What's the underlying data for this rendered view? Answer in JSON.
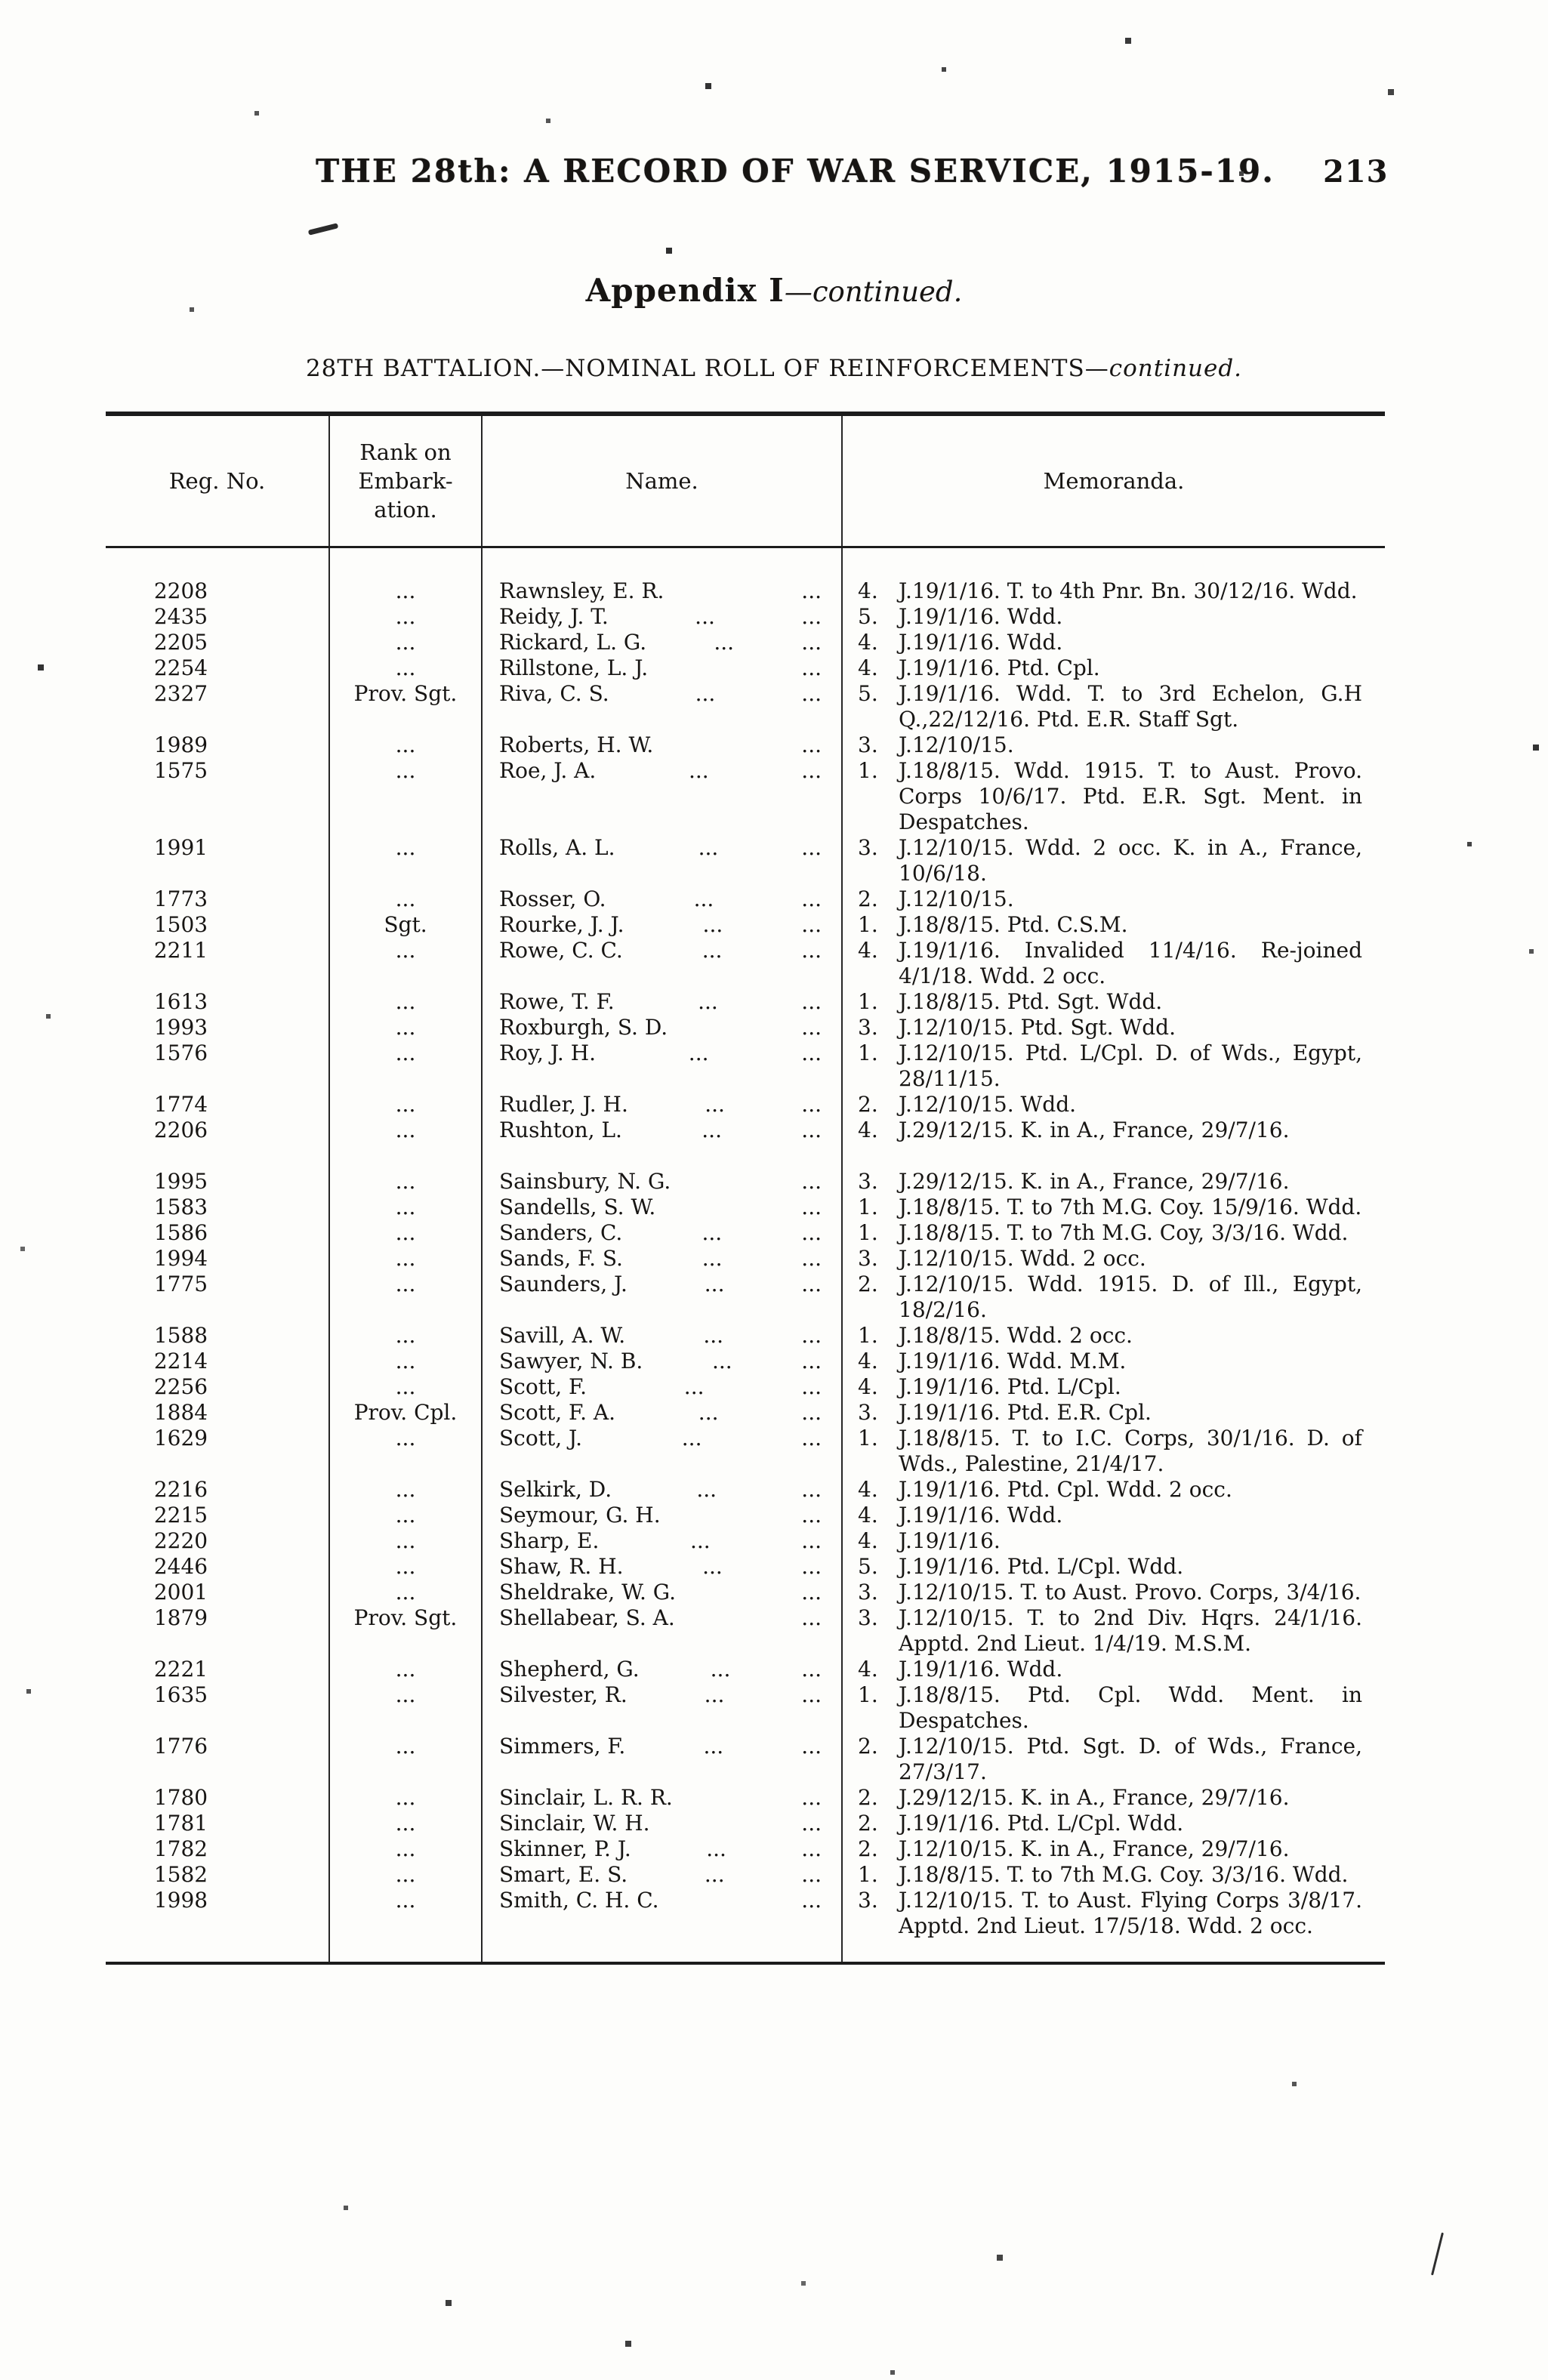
{
  "page": {
    "title": "THE 28th: A RECORD OF WAR SERVICE, 1915-19.",
    "page_number": "213",
    "appendix_heading": "Appendix I",
    "appendix_continued": "—continued.",
    "battalion_heading": "28TH BATTALION.—NOMINAL ROLL OF REINFORCEMENTS—",
    "battalion_continued": "continued."
  },
  "table": {
    "headers": {
      "reg_no": "Reg. No.",
      "rank_line1": "Rank on",
      "rank_line2": "Embark-",
      "rank_line3": "ation.",
      "name": "Name.",
      "memoranda": "Memoranda."
    },
    "rows": [
      {
        "reg": "2208",
        "rank": "...",
        "name": "Rawnsley, E. R.",
        "mid": "",
        "end": "...",
        "num": "4.",
        "memo": "J.19/1/16.  T. to 4th Pnr. Bn. 30/12/16.  Wdd."
      },
      {
        "reg": "2435",
        "rank": "...",
        "name": "Reidy, J. T.",
        "mid": "...",
        "end": "...",
        "num": "5.",
        "memo": "J.19/1/16.  Wdd."
      },
      {
        "reg": "2205",
        "rank": "...",
        "name": "Rickard, L. G.",
        "mid": "...",
        "end": "...",
        "num": "4.",
        "memo": "J.19/1/16.  Wdd."
      },
      {
        "reg": "2254",
        "rank": "...",
        "name": "Rillstone, L. J.",
        "mid": "",
        "end": "...",
        "num": "4.",
        "memo": "J.19/1/16.  Ptd. Cpl."
      },
      {
        "reg": "2327",
        "rank": "Prov. Sgt.",
        "name": "Riva, C. S.",
        "mid": "...",
        "end": "...",
        "num": "5.",
        "memo": "J.19/1/16.  Wdd. T. to 3rd Echelon, G.H Q.,22/12/16.  Ptd. E.R. Staff Sgt."
      },
      {
        "reg": "1989",
        "rank": "...",
        "name": "Roberts, H. W.",
        "mid": "",
        "end": "...",
        "num": "3.",
        "memo": "J.12/10/15."
      },
      {
        "reg": "1575",
        "rank": "...",
        "name": "Roe, J. A.",
        "mid": "...",
        "end": "...",
        "num": "1.",
        "memo": "J.18/8/15.  Wdd. 1915.  T. to Aust. Provo. Corps 10/6/17.  Ptd. E.R. Sgt. Ment. in Despatches."
      },
      {
        "reg": "1991",
        "rank": "...",
        "name": "Rolls, A. L.",
        "mid": "...",
        "end": "...",
        "num": "3.",
        "memo": "J.12/10/15.  Wdd. 2 occ.  K. in A., France, 10/6/18."
      },
      {
        "reg": "1773",
        "rank": "...",
        "name": "Rosser, O.",
        "mid": "...",
        "end": "...",
        "num": "2.",
        "memo": "J.12/10/15."
      },
      {
        "reg": "1503",
        "rank": "Sgt.",
        "name": "Rourke, J. J.",
        "mid": "...",
        "end": "...",
        "num": "1.",
        "memo": "J.18/8/15.  Ptd. C.S.M."
      },
      {
        "reg": "2211",
        "rank": "...",
        "name": "Rowe, C. C.",
        "mid": "...",
        "end": "...",
        "num": "4.",
        "memo": "J.19/1/16.  Invalided 11/4/16.  Re-joined 4/1/18.  Wdd. 2 occ."
      },
      {
        "reg": "1613",
        "rank": "...",
        "name": "Rowe, T. F.",
        "mid": "...",
        "end": "...",
        "num": "1.",
        "memo": "J.18/8/15.  Ptd. Sgt.  Wdd."
      },
      {
        "reg": "1993",
        "rank": "...",
        "name": "Roxburgh, S. D.",
        "mid": "",
        "end": "...",
        "num": "3.",
        "memo": "J.12/10/15.  Ptd. Sgt.  Wdd."
      },
      {
        "reg": "1576",
        "rank": "...",
        "name": "Roy, J. H.",
        "mid": "...",
        "end": "...",
        "num": "1.",
        "memo": "J.12/10/15.  Ptd. L/Cpl.  D. of Wds., Egypt, 28/11/15."
      },
      {
        "reg": "1774",
        "rank": "...",
        "name": "Rudler, J. H.",
        "mid": "...",
        "end": "...",
        "num": "2.",
        "memo": "J.12/10/15.  Wdd."
      },
      {
        "reg": "2206",
        "rank": "...",
        "name": "Rushton, L.",
        "mid": "...",
        "end": "...",
        "num": "4.",
        "memo": "J.29/12/15.  K. in A., France, 29/7/16."
      },
      {
        "reg": "1995",
        "rank": "...",
        "name": "Sainsbury, N. G.",
        "mid": "",
        "end": "...",
        "num": "3.",
        "memo": "J.29/12/15.  K. in A., France, 29/7/16.",
        "gap": true
      },
      {
        "reg": "1583",
        "rank": "...",
        "name": "Sandells, S. W.",
        "mid": "",
        "end": "...",
        "num": "1.",
        "memo": "J.18/8/15.  T. to 7th M.G. Coy. 15/9/16.  Wdd."
      },
      {
        "reg": "1586",
        "rank": "...",
        "name": "Sanders, C.",
        "mid": "...",
        "end": "...",
        "num": "1.",
        "memo": "J.18/8/15.  T. to 7th M.G. Coy, 3/3/16.  Wdd."
      },
      {
        "reg": "1994",
        "rank": "...",
        "name": "Sands, F. S.",
        "mid": "...",
        "end": "...",
        "num": "3.",
        "memo": "J.12/10/15.  Wdd. 2 occ."
      },
      {
        "reg": "1775",
        "rank": "...",
        "name": "Saunders, J.",
        "mid": "...",
        "end": "...",
        "num": "2.",
        "memo": "J.12/10/15.  Wdd. 1915.  D. of Ill., Egypt, 18/2/16."
      },
      {
        "reg": "1588",
        "rank": "...",
        "name": "Savill, A. W.",
        "mid": "...",
        "end": "...",
        "num": "1.",
        "memo": "J.18/8/15.  Wdd. 2 occ."
      },
      {
        "reg": "2214",
        "rank": "...",
        "name": "Sawyer, N. B.",
        "mid": "...",
        "end": "...",
        "num": "4.",
        "memo": "J.19/1/16.  Wdd.  M.M."
      },
      {
        "reg": "2256",
        "rank": "...",
        "name": "Scott, F.",
        "mid": "...",
        "end": "...",
        "num": "4.",
        "memo": "J.19/1/16.  Ptd. L/Cpl."
      },
      {
        "reg": "1884",
        "rank": "Prov. Cpl.",
        "name": "Scott, F. A.",
        "mid": "...",
        "end": "...",
        "num": "3.",
        "memo": "J.19/1/16.  Ptd. E.R. Cpl."
      },
      {
        "reg": "1629",
        "rank": "...",
        "name": "Scott, J.",
        "mid": "...",
        "end": "...",
        "num": "1.",
        "memo": "J.18/8/15.  T. to I.C. Corps, 30/1/16. D. of Wds., Palestine, 21/4/17."
      },
      {
        "reg": "2216",
        "rank": "...",
        "name": "Selkirk, D.",
        "mid": "...",
        "end": "...",
        "num": "4.",
        "memo": "J.19/1/16.  Ptd. Cpl.  Wdd. 2 occ."
      },
      {
        "reg": "2215",
        "rank": "...",
        "name": "Seymour, G. H.",
        "mid": "",
        "end": "...",
        "num": "4.",
        "memo": "J.19/1/16.  Wdd."
      },
      {
        "reg": "2220",
        "rank": "...",
        "name": "Sharp, E.",
        "mid": "...",
        "end": "...",
        "num": "4.",
        "memo": "J.19/1/16."
      },
      {
        "reg": "2446",
        "rank": "...",
        "name": "Shaw, R. H.",
        "mid": "...",
        "end": "...",
        "num": "5.",
        "memo": "J.19/1/16.  Ptd. L/Cpl.  Wdd."
      },
      {
        "reg": "2001",
        "rank": "...",
        "name": "Sheldrake, W. G.",
        "mid": "",
        "end": "...",
        "num": "3.",
        "memo": "J.12/10/15.  T. to Aust. Provo. Corps, 3/4/16."
      },
      {
        "reg": "1879",
        "rank": "Prov. Sgt.",
        "name": "Shellabear, S. A.",
        "mid": "",
        "end": "...",
        "num": "3.",
        "memo": "J.12/10/15.  T. to 2nd Div. Hqrs. 24/1/16.  Apptd. 2nd Lieut. 1/4/19. M.S.M."
      },
      {
        "reg": "2221",
        "rank": "...",
        "name": "Shepherd, G.",
        "mid": "...",
        "end": "...",
        "num": "4.",
        "memo": "J.19/1/16.  Wdd."
      },
      {
        "reg": "1635",
        "rank": "...",
        "name": "Silvester, R.",
        "mid": "...",
        "end": "...",
        "num": "1.",
        "memo": "J.18/8/15.  Ptd. Cpl.  Wdd.  Ment. in Despatches."
      },
      {
        "reg": "1776",
        "rank": "...",
        "name": "Simmers, F.",
        "mid": "...",
        "end": "...",
        "num": "2.",
        "memo": "J.12/10/15.  Ptd. Sgt.  D. of Wds., France, 27/3/17."
      },
      {
        "reg": "1780",
        "rank": "...",
        "name": "Sinclair, L. R. R.",
        "mid": "",
        "end": "...",
        "num": "2.",
        "memo": "J.29/12/15.  K. in A., France, 29/7/16."
      },
      {
        "reg": "1781",
        "rank": "...",
        "name": "Sinclair, W. H.",
        "mid": "",
        "end": "...",
        "num": "2.",
        "memo": "J.19/1/16.  Ptd. L/Cpl.  Wdd."
      },
      {
        "reg": "1782",
        "rank": "...",
        "name": "Skinner, P. J.",
        "mid": "...",
        "end": "...",
        "num": "2.",
        "memo": "J.12/10/15.  K. in A., France, 29/7/16."
      },
      {
        "reg": "1582",
        "rank": "...",
        "name": "Smart, E. S.",
        "mid": "...",
        "end": "...",
        "num": "1.",
        "memo": "J.18/8/15.  T. to 7th M.G. Coy. 3/3/16.  Wdd."
      },
      {
        "reg": "1998",
        "rank": "...",
        "name": "Smith, C. H. C.",
        "mid": "",
        "end": "...",
        "num": "3.",
        "memo": "J.12/10/15.  T. to Aust. Flying Corps 3/8/17.  Apptd. 2nd Lieut. 17/5/18.  Wdd. 2 occ."
      }
    ]
  }
}
